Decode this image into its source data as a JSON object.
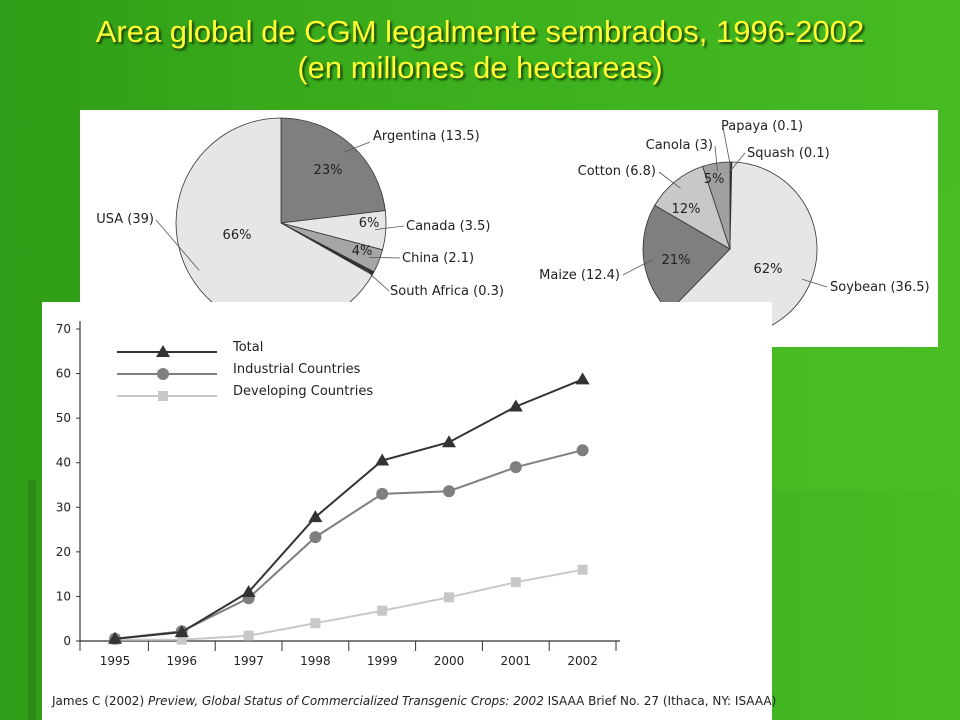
{
  "slide": {
    "title_line1": "Area global de CGM legalmente sembrados, 1996-2002",
    "title_line2": "(en millones de hectareas)",
    "colors": {
      "background": "#3aac1c",
      "title": "#ffff33"
    }
  },
  "citation": {
    "part1": "James C (2002) ",
    "part2_italic": "Preview, Global Status of Commercialized Transgenic Crops: 2002",
    "part3": " ISAAA Brief No. 27 (Ithaca, NY: ISAAA)"
  },
  "chart_data": [
    {
      "type": "pie",
      "categories": [
        "Argentina",
        "Canada",
        "China",
        "South Africa",
        "USA"
      ],
      "labels": [
        "Argentina (13.5)",
        "Canada (3.5)",
        "China (2.1)",
        "South Africa (0.3)",
        "USA (39)"
      ],
      "values": [
        13.5,
        3.5,
        2.1,
        0.3,
        39
      ],
      "percent_labels": [
        "23%",
        "6%",
        "4%",
        "",
        "66%"
      ],
      "colors": [
        "#7f7f7f",
        "#e6e6e6",
        "#a6a6a6",
        "#333333",
        "#e6e6e6"
      ]
    },
    {
      "type": "pie",
      "categories": [
        "Soybean",
        "Maize",
        "Cotton",
        "Canola",
        "Papaya",
        "Squash"
      ],
      "labels": [
        "Soybean (36.5)",
        "Maize (12.4)",
        "Cotton (6.8)",
        "Canola (3)",
        "Papaya (0.1)",
        "Squash (0.1)"
      ],
      "values": [
        36.5,
        12.4,
        6.8,
        3,
        0.1,
        0.1
      ],
      "percent_labels": [
        "62%",
        "21%",
        "12%",
        "5%",
        "",
        ""
      ],
      "colors": [
        "#e6e6e6",
        "#7f7f7f",
        "#c8c8c8",
        "#a0a0a0",
        "#555555",
        "#555555"
      ]
    },
    {
      "type": "line",
      "x": [
        1995,
        1996,
        1997,
        1998,
        1999,
        2000,
        2001,
        2002
      ],
      "x_tick_labels": [
        "1995",
        "1996",
        "1997",
        "1998",
        "1999",
        "2000",
        "2001",
        "2002"
      ],
      "y_ticks": [
        0,
        10,
        20,
        30,
        40,
        50,
        60,
        70
      ],
      "ylim": [
        0,
        70
      ],
      "legend_position": "top-left",
      "series": [
        {
          "name": "Total",
          "values": [
            0.5,
            2,
            11,
            27.8,
            40.5,
            44.6,
            52.6,
            58.7
          ],
          "color": "#333333",
          "marker": "triangle"
        },
        {
          "name": "Industrial Countries",
          "values": [
            0.5,
            2.2,
            9.6,
            23.3,
            33,
            33.6,
            39,
            42.8
          ],
          "color": "#7f7f7f",
          "marker": "circle"
        },
        {
          "name": "Developing Countries",
          "values": [
            0.3,
            0.3,
            1.2,
            4,
            6.8,
            9.8,
            13.2,
            16
          ],
          "color": "#c8c8c8",
          "marker": "square"
        }
      ]
    }
  ]
}
